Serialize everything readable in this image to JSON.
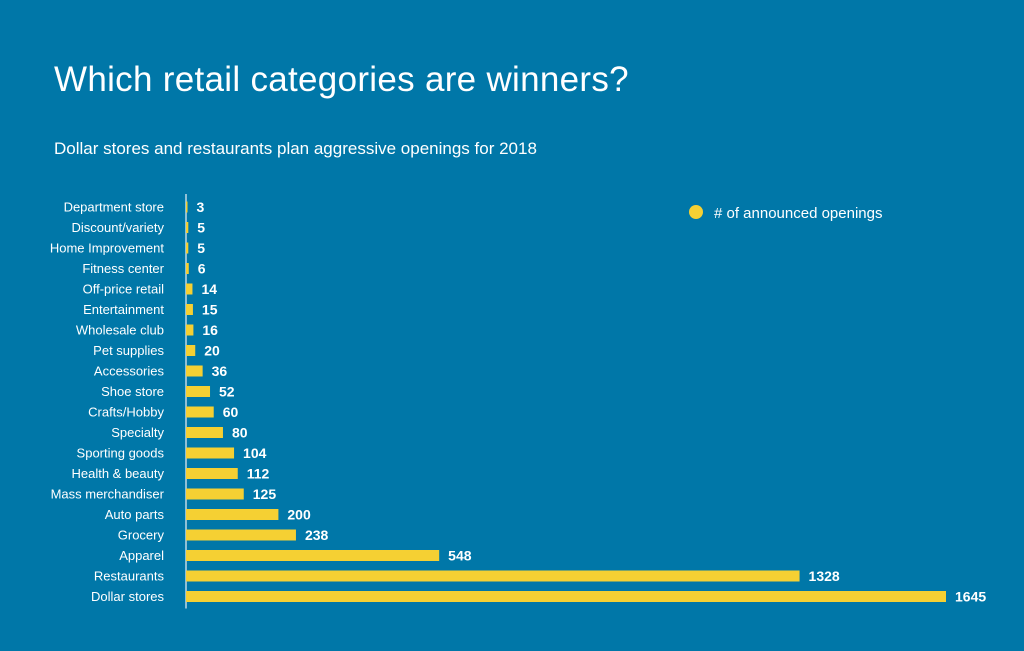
{
  "chart_data": {
    "type": "bar",
    "orientation": "horizontal",
    "title": "Which retail categories are winners?",
    "subtitle": "Dollar stores and restaurants plan aggressive openings for 2018",
    "categories": [
      "Department store",
      "Discount/variety",
      "Home Improvement",
      "Fitness center",
      "Off-price retail",
      "Entertainment",
      "Wholesale club",
      "Pet supplies",
      "Accessories",
      "Shoe store",
      "Crafts/Hobby",
      "Specialty",
      "Sporting goods",
      "Health & beauty",
      "Mass merchandiser",
      "Auto parts",
      "Grocery",
      "Apparel",
      "Restaurants",
      "Dollar stores"
    ],
    "series": [
      {
        "name": "# of announced openings",
        "values": [
          3,
          5,
          5,
          6,
          14,
          15,
          16,
          20,
          36,
          52,
          60,
          80,
          104,
          112,
          125,
          200,
          238,
          548,
          1328,
          1645
        ]
      }
    ],
    "xlim": [
      0,
      1645
    ],
    "grid": false,
    "legend_position": "top-right",
    "bar_color": "#F5D033",
    "axis_color": "#BFD9E6",
    "background_color": "#0077A8"
  }
}
